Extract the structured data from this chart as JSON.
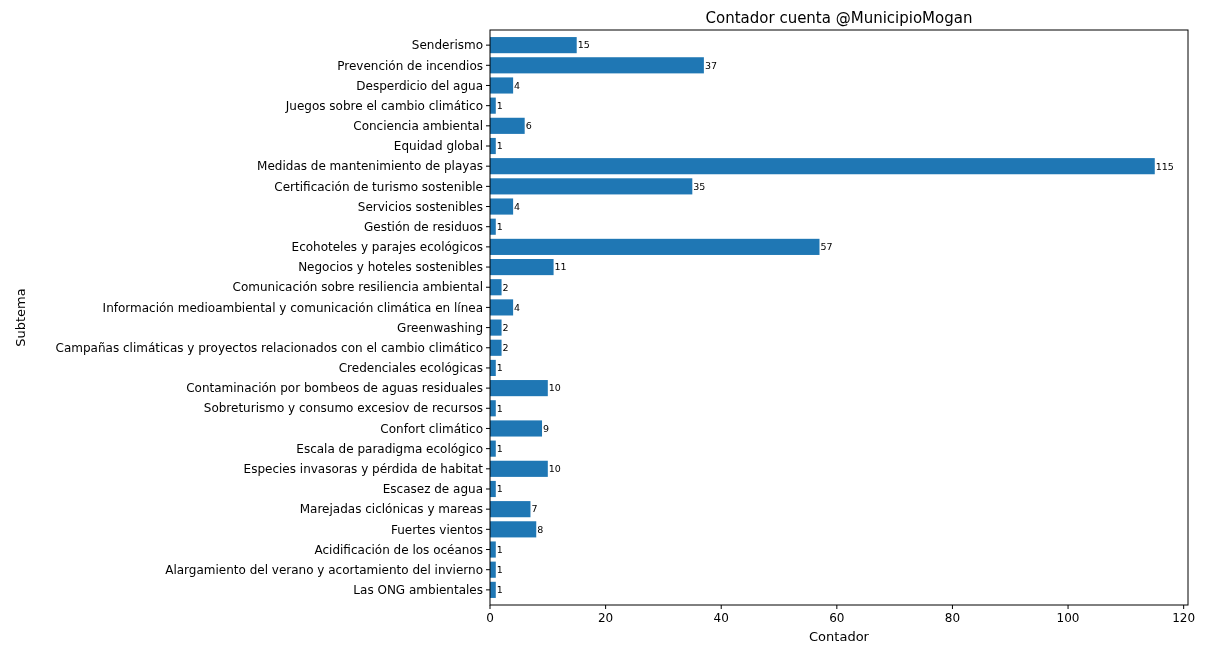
{
  "chart_data": {
    "type": "bar",
    "orientation": "horizontal",
    "title": "Contador cuenta @MunicipioMogan",
    "xlabel": "Contador",
    "ylabel": "Subtema",
    "categories": [
      "Senderismo",
      "Prevención de incendios",
      "Desperdicio del agua",
      "Juegos sobre el cambio climático",
      "Conciencia ambiental",
      "Equidad global",
      "Medidas de mantenimiento de playas",
      "Certificación de turismo sostenible",
      "Servicios sostenibles",
      "Gestión de residuos",
      "Ecohoteles y parajes ecológicos",
      "Negocios y hoteles sostenibles",
      "Comunicación sobre resiliencia ambiental",
      "Información medioambiental y comunicación climática en línea",
      "Greenwashing",
      "Campañas climáticas y proyectos relacionados con el cambio climático",
      "Credenciales ecológicas",
      "Contaminación por bombeos de aguas residuales",
      "Sobreturismo y consumo excesiov de recursos",
      "Confort climático",
      "Escala de paradigma ecológico",
      "Especies invasoras y pérdida de habitat",
      "Escasez de agua",
      "Marejadas ciclónicas y mareas",
      "Fuertes vientos",
      "Acidificación de los océanos",
      "Alargamiento del verano y acortamiento del invierno",
      "Las ONG ambientales"
    ],
    "values": [
      15,
      37,
      4,
      1,
      6,
      1,
      115,
      35,
      4,
      1,
      57,
      11,
      2,
      4,
      2,
      2,
      1,
      10,
      1,
      9,
      1,
      10,
      1,
      7,
      8,
      1,
      1,
      1
    ],
    "color": "#1f77b4",
    "xlim": [
      0,
      120.75
    ],
    "xticks": [
      0,
      20,
      40,
      60,
      80,
      100,
      120
    ],
    "data_labels": true
  }
}
